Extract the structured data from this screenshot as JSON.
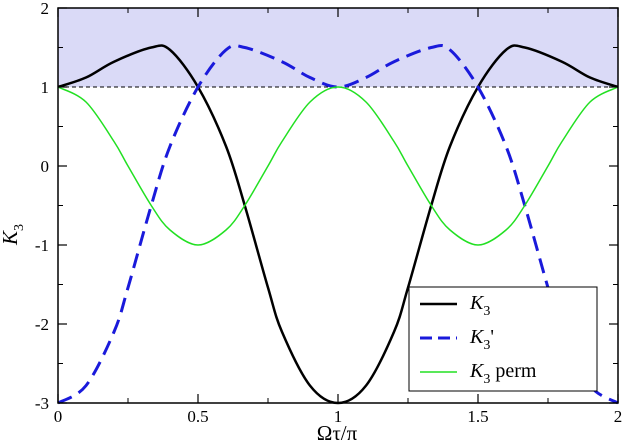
{
  "chart_data": {
    "type": "line",
    "title": "",
    "xlabel": "Ωτ/π",
    "ylabel": {
      "main": "K",
      "sub": "3"
    },
    "xlim": [
      0,
      2
    ],
    "ylim": [
      -3,
      2
    ],
    "xticks": [
      "0",
      "0.5",
      "1",
      "1.5",
      "2"
    ],
    "yticks": [
      "-3",
      "-2",
      "-1",
      "0",
      "1",
      "2"
    ],
    "grid": false,
    "shaded_region": {
      "y_from": 1,
      "y_to": 2,
      "color": "#dadaf7"
    },
    "reference_line": {
      "y": 1,
      "style": "dashed",
      "color": "#000000"
    },
    "legend": {
      "position": "bottom-right",
      "entries": [
        {
          "main": "K",
          "sub": "3",
          "suffix": ""
        },
        {
          "main": "K",
          "sub": "3",
          "suffix": "'"
        },
        {
          "main": "K",
          "sub": "3",
          "suffix": " perm"
        }
      ]
    },
    "series": [
      {
        "color": "#000000",
        "dash": "solid",
        "points": [
          [
            0,
            1
          ],
          [
            0.1,
            1.12
          ],
          [
            0.2,
            1.32
          ],
          [
            0.333,
            1.5
          ],
          [
            0.4,
            1.47
          ],
          [
            0.5,
            1.0
          ],
          [
            0.6,
            0.25
          ],
          [
            0.667,
            -0.5
          ],
          [
            0.75,
            -1.54
          ],
          [
            0.8,
            -2.1
          ],
          [
            0.9,
            -2.78
          ],
          [
            1,
            -3
          ],
          [
            1.1,
            -2.78
          ],
          [
            1.2,
            -2.1
          ],
          [
            1.25,
            -1.54
          ],
          [
            1.333,
            -0.5
          ],
          [
            1.4,
            0.25
          ],
          [
            1.5,
            1.0
          ],
          [
            1.6,
            1.47
          ],
          [
            1.667,
            1.5
          ],
          [
            1.8,
            1.32
          ],
          [
            1.9,
            1.12
          ],
          [
            2,
            1
          ]
        ]
      },
      {
        "color": "#1a1adb",
        "dash": "dashed",
        "points": [
          [
            0,
            -3
          ],
          [
            0.1,
            -2.78
          ],
          [
            0.2,
            -2.1
          ],
          [
            0.25,
            -1.54
          ],
          [
            0.333,
            -0.5
          ],
          [
            0.4,
            0.25
          ],
          [
            0.5,
            1.0
          ],
          [
            0.6,
            1.47
          ],
          [
            0.667,
            1.5
          ],
          [
            0.8,
            1.32
          ],
          [
            0.9,
            1.12
          ],
          [
            1,
            1
          ],
          [
            1.1,
            1.12
          ],
          [
            1.2,
            1.32
          ],
          [
            1.333,
            1.5
          ],
          [
            1.4,
            1.47
          ],
          [
            1.5,
            1.0
          ],
          [
            1.6,
            0.25
          ],
          [
            1.667,
            -0.5
          ],
          [
            1.75,
            -1.54
          ],
          [
            1.8,
            -2.1
          ],
          [
            1.9,
            -2.78
          ],
          [
            2,
            -3
          ]
        ]
      },
      {
        "color": "#22e022",
        "dash": "solid",
        "points": [
          [
            0,
            1
          ],
          [
            0.1,
            0.81
          ],
          [
            0.2,
            0.31
          ],
          [
            0.25,
            0.0
          ],
          [
            0.333,
            -0.5
          ],
          [
            0.4,
            -0.81
          ],
          [
            0.5,
            -1
          ],
          [
            0.6,
            -0.81
          ],
          [
            0.667,
            -0.5
          ],
          [
            0.75,
            0.0
          ],
          [
            0.8,
            0.31
          ],
          [
            0.9,
            0.81
          ],
          [
            1,
            1
          ],
          [
            1.1,
            0.81
          ],
          [
            1.2,
            0.31
          ],
          [
            1.25,
            0.0
          ],
          [
            1.333,
            -0.5
          ],
          [
            1.4,
            -0.81
          ],
          [
            1.5,
            -1
          ],
          [
            1.6,
            -0.81
          ],
          [
            1.667,
            -0.5
          ],
          [
            1.75,
            0.0
          ],
          [
            1.8,
            0.31
          ],
          [
            1.9,
            0.81
          ],
          [
            2,
            1
          ]
        ]
      }
    ]
  }
}
